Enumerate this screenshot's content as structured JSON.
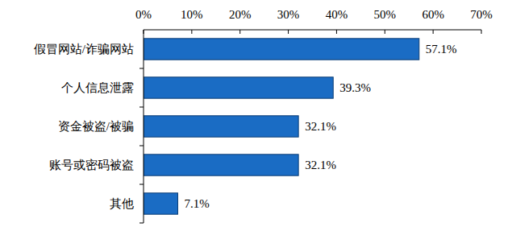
{
  "chart_data": {
    "type": "bar",
    "orientation": "horizontal",
    "categories": [
      "假冒网站/诈骗网站",
      "个人信息泄露",
      "资金被盗/被骗",
      "账号或密码被盗",
      "其他"
    ],
    "values": [
      57.1,
      39.3,
      32.1,
      32.1,
      7.1
    ],
    "value_labels": [
      "57.1%",
      "39.3%",
      "32.1%",
      "32.1%",
      "7.1%"
    ],
    "color": "#1a6cc4",
    "xlim": [
      0,
      70
    ],
    "xticks": [
      {
        "value": 0,
        "label": "0%"
      },
      {
        "value": 10,
        "label": "10%"
      },
      {
        "value": 20,
        "label": "20%"
      },
      {
        "value": 30,
        "label": "30%"
      },
      {
        "value": 40,
        "label": "40%"
      },
      {
        "value": 50,
        "label": "50%"
      },
      {
        "value": 60,
        "label": "60%"
      },
      {
        "value": 70,
        "label": "70%"
      }
    ],
    "data_labels": true,
    "grid": false
  }
}
